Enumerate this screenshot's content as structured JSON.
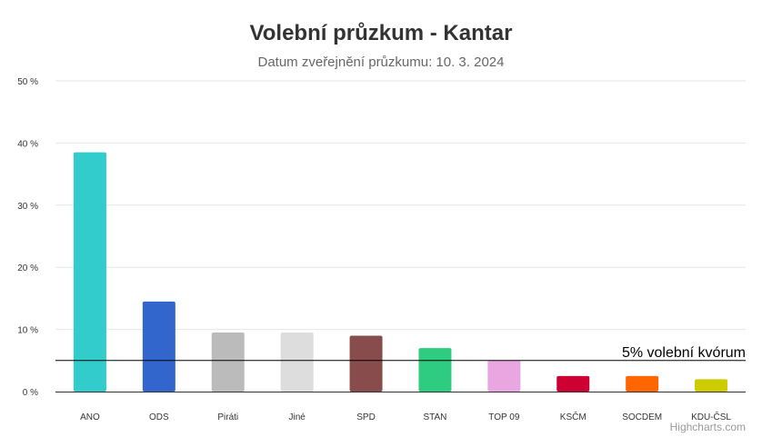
{
  "chart_data": {
    "type": "bar",
    "title": "Volební průzkum - Kantar",
    "subtitle": "Datum zveřejnění průzkumu: 10. 3. 2024",
    "categories": [
      "ANO",
      "ODS",
      "Piráti",
      "Jiné",
      "SPD",
      "STAN",
      "TOP 09",
      "KSČM",
      "SOCDEM",
      "KDU-ČSL"
    ],
    "values": [
      38.5,
      14.5,
      9.5,
      9.5,
      9.0,
      7.0,
      5.0,
      2.5,
      2.5,
      2.0
    ],
    "colors": [
      "#33cccc",
      "#3366cc",
      "#bbbbbb",
      "#dddddd",
      "#884c4c",
      "#2ecc80",
      "#eaa6e0",
      "#cc0033",
      "#ff6600",
      "#cccc00"
    ],
    "ylim": [
      0,
      50
    ],
    "yticks": [
      0,
      10,
      20,
      30,
      40,
      50
    ],
    "ytick_labels": [
      "0 %",
      "10 %",
      "20 %",
      "30 %",
      "40 %",
      "50 %"
    ],
    "grid": true,
    "plot_line": {
      "value": 5,
      "label": "5% volební kvórum",
      "color": "#000000"
    },
    "credits": "Highcharts.com"
  }
}
